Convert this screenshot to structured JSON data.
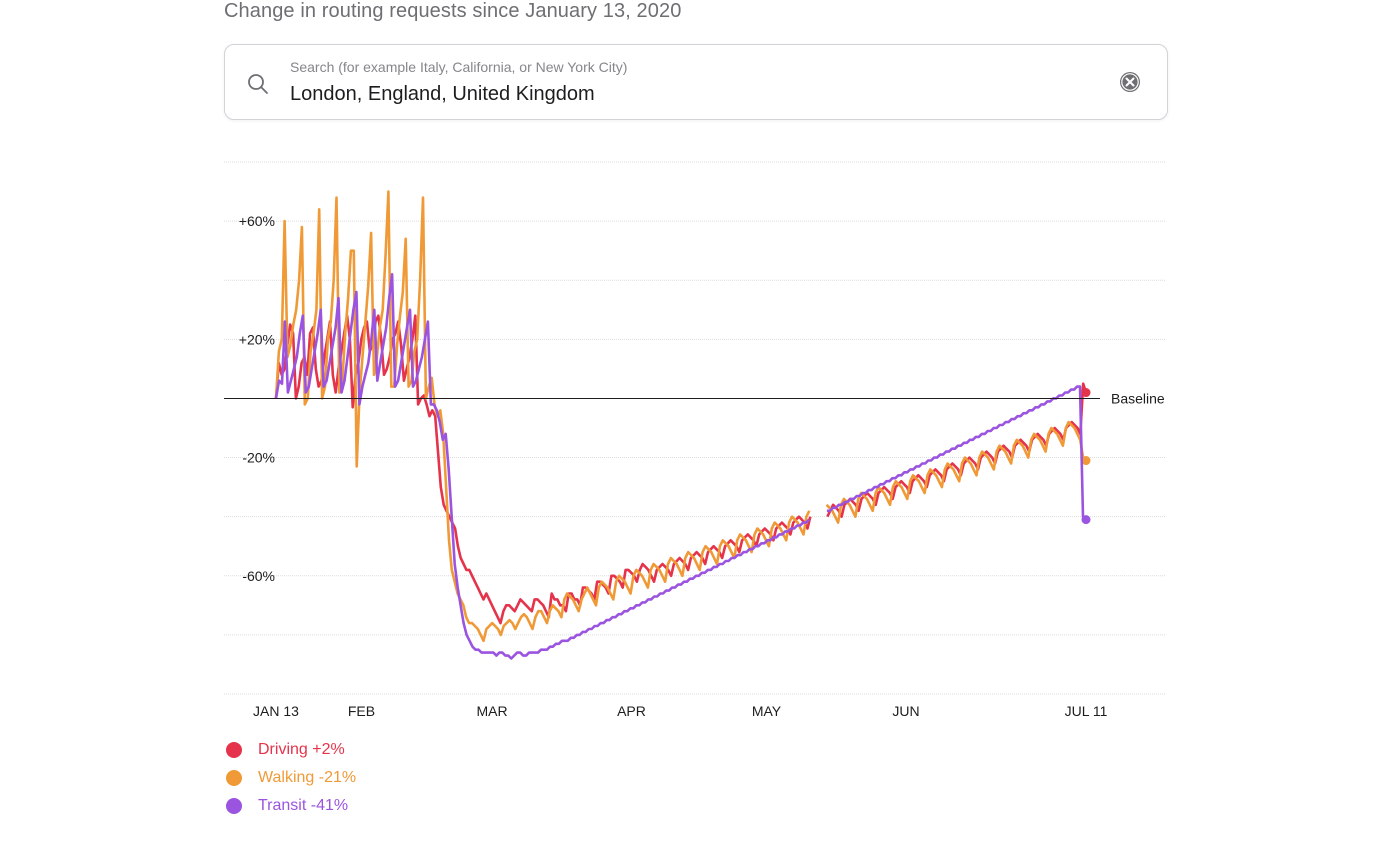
{
  "page": {
    "subtitle": "Change in routing requests since January 13, 2020"
  },
  "search": {
    "placeholder": "Search (for example Italy, California, or New York City)",
    "value": "London, England, United Kingdom",
    "icon": "search-icon",
    "clear_icon": "clear-icon"
  },
  "chart_data": {
    "type": "line",
    "subtitle": "Change in routing requests since January 13, 2020",
    "x_range": [
      "2020-01-13",
      "2020-07-11"
    ],
    "x_ticks": [
      {
        "label": "JAN 13",
        "day": 0
      },
      {
        "label": "FEB",
        "day": 19
      },
      {
        "label": "MAR",
        "day": 48
      },
      {
        "label": "APR",
        "day": 79
      },
      {
        "label": "MAY",
        "day": 109
      },
      {
        "label": "JUN",
        "day": 140
      },
      {
        "label": "JUL 11",
        "day": 180
      }
    ],
    "y_ticks": [
      {
        "label": "+60%",
        "value": 60
      },
      {
        "label": "+20%",
        "value": 20
      },
      {
        "label": "-20%",
        "value": -20
      },
      {
        "label": "-60%",
        "value": -60
      }
    ],
    "y_gridlines": [
      80,
      60,
      40,
      20,
      -20,
      -40,
      -60,
      -80,
      -100
    ],
    "ylim": [
      -100,
      80
    ],
    "baseline_label": "Baseline",
    "gap": [
      119,
      122
    ],
    "series": [
      {
        "name": "Driving",
        "legend": "Driving +2%",
        "color": "#e5334b",
        "values": [
          0,
          12,
          8,
          10,
          18,
          25,
          22,
          0,
          4,
          12,
          14,
          8,
          22,
          24,
          10,
          4,
          6,
          14,
          20,
          26,
          8,
          2,
          10,
          16,
          22,
          28,
          20,
          -3,
          8,
          12,
          20,
          24,
          26,
          16,
          18,
          26,
          28,
          20,
          8,
          10,
          14,
          20,
          22,
          26,
          18,
          6,
          10,
          14,
          20,
          28,
          -2,
          0,
          1,
          -2,
          -6,
          -4,
          -6,
          -18,
          -30,
          -36,
          -38,
          -40,
          -42,
          -44,
          -50,
          -54,
          -56,
          -58,
          -58,
          -60,
          -62,
          -64,
          -66,
          -68,
          -66,
          -68,
          -70,
          -72,
          -74,
          -76,
          -72,
          -70,
          -70,
          -71,
          -72,
          -70,
          -68,
          -69,
          -70,
          -71,
          -72,
          -68,
          -68,
          -69,
          -70,
          -72,
          -74,
          -66,
          -68,
          -68,
          -70,
          -70,
          -72,
          -66,
          -66,
          -68,
          -68,
          -70,
          -64,
          -64,
          -65,
          -66,
          -68,
          -62,
          -62,
          -63,
          -64,
          -66,
          -60,
          -60,
          -61,
          -62,
          -64,
          -58,
          -58,
          -59,
          -60,
          -62,
          -58,
          -56,
          -57,
          -58,
          -60,
          -62,
          -58,
          -57,
          -56,
          -57,
          -58,
          -60,
          -56,
          -55,
          -54,
          -55,
          -56,
          -58,
          -54,
          -53,
          -52,
          -53,
          -54,
          -56,
          -52,
          -51,
          -50,
          -51,
          -52,
          -54,
          -50,
          -49,
          -48,
          -49,
          -50,
          -52,
          -48,
          -47,
          -46,
          -47,
          -48,
          -50,
          -46,
          -45,
          -44,
          -45,
          -46,
          -48,
          -44,
          -43,
          -42,
          -43,
          -44,
          -46,
          -42,
          -41,
          -40,
          -41,
          -42,
          -44,
          -40,
          -39,
          -38,
          -39,
          -40,
          -42,
          -40,
          -38,
          -36,
          -37,
          -38,
          -40,
          -36,
          -35,
          -34,
          -35,
          -36,
          -38,
          -34,
          -33,
          -32,
          -33,
          -34,
          -36,
          -32,
          -31,
          -30,
          -31,
          -32,
          -34,
          -30,
          -29,
          -28,
          -29,
          -30,
          -32,
          -28,
          -27,
          -26,
          -27,
          -28,
          -30,
          -26,
          -25,
          -24,
          -25,
          -26,
          -28,
          -24,
          -23,
          -22,
          -23,
          -24,
          -26,
          -22,
          -21,
          -20,
          -21,
          -22,
          -24,
          -20,
          -19,
          -18,
          -19,
          -20,
          -22,
          -18,
          -17,
          -16,
          -17,
          -18,
          -20,
          -16,
          -15,
          -14,
          -15,
          -16,
          -18,
          -14,
          -13,
          -12,
          -13,
          -14,
          -16,
          -12,
          -11,
          -10,
          -11,
          -12,
          -14,
          -10,
          -9,
          -8,
          -9,
          -10,
          -12,
          5,
          2
        ]
      },
      {
        "name": "Walking",
        "legend": "Walking -21%",
        "color": "#f09a37",
        "values": [
          0,
          16,
          20,
          60,
          14,
          18,
          25,
          30,
          40,
          58,
          -2,
          0,
          16,
          22,
          30,
          64,
          0,
          4,
          20,
          26,
          40,
          68,
          2,
          6,
          22,
          34,
          50,
          50,
          -23,
          2,
          14,
          26,
          38,
          56,
          8,
          14,
          24,
          30,
          48,
          70,
          4,
          4,
          18,
          28,
          36,
          54,
          4,
          6,
          16,
          20,
          40,
          68,
          0,
          4,
          7,
          -2,
          -6,
          -4,
          -12,
          -30,
          -48,
          -58,
          -62,
          -66,
          -68,
          -70,
          -74,
          -76,
          -76,
          -77,
          -78,
          -80,
          -82,
          -78,
          -77,
          -76,
          -77,
          -78,
          -80,
          -77,
          -76,
          -75,
          -76,
          -78,
          -76,
          -74,
          -73,
          -74,
          -76,
          -78,
          -74,
          -72,
          -72,
          -74,
          -76,
          -72,
          -70,
          -71,
          -72,
          -74,
          -68,
          -66,
          -67,
          -68,
          -70,
          -72,
          -68,
          -66,
          -64,
          -66,
          -68,
          -70,
          -64,
          -62,
          -63,
          -64,
          -66,
          -68,
          -62,
          -60,
          -61,
          -62,
          -64,
          -66,
          -60,
          -58,
          -59,
          -60,
          -62,
          -64,
          -58,
          -56,
          -57,
          -58,
          -60,
          -62,
          -56,
          -54,
          -55,
          -56,
          -58,
          -60,
          -54,
          -52,
          -53,
          -54,
          -56,
          -58,
          -52,
          -50,
          -51,
          -52,
          -54,
          -56,
          -50,
          -48,
          -49,
          -50,
          -52,
          -54,
          -48,
          -46,
          -47,
          -48,
          -50,
          -52,
          -46,
          -44,
          -45,
          -46,
          -48,
          -50,
          -44,
          -42,
          -43,
          -44,
          -46,
          -48,
          -42,
          -40,
          -41,
          -42,
          -44,
          -46,
          -40,
          -38,
          -39,
          -40,
          -42,
          -44,
          -38,
          -36,
          -37,
          -38,
          -40,
          -42,
          -36,
          -34,
          -35,
          -36,
          -38,
          -40,
          -34,
          -32,
          -33,
          -34,
          -36,
          -38,
          -32,
          -30,
          -31,
          -32,
          -34,
          -36,
          -30,
          -28,
          -29,
          -30,
          -32,
          -34,
          -28,
          -26,
          -27,
          -28,
          -30,
          -32,
          -26,
          -24,
          -25,
          -26,
          -28,
          -30,
          -24,
          -22,
          -23,
          -24,
          -26,
          -28,
          -22,
          -20,
          -21,
          -22,
          -24,
          -26,
          -20,
          -18,
          -19,
          -20,
          -22,
          -24,
          -18,
          -16,
          -17,
          -18,
          -20,
          -22,
          -16,
          -14,
          -15,
          -16,
          -18,
          -20,
          -14,
          -12,
          -13,
          -14,
          -16,
          -18,
          -12,
          -10,
          -11,
          -12,
          -14,
          -16,
          -10,
          -8,
          -9,
          -10,
          -12,
          -14,
          -20,
          -21
        ]
      },
      {
        "name": "Transit",
        "legend": "Transit -41%",
        "color": "#9b54e0",
        "values": [
          0,
          6,
          5,
          26,
          2,
          6,
          10,
          14,
          22,
          28,
          2,
          4,
          10,
          16,
          22,
          30,
          4,
          6,
          12,
          18,
          24,
          34,
          2,
          6,
          14,
          22,
          30,
          36,
          -2,
          4,
          8,
          12,
          20,
          30,
          6,
          12,
          18,
          24,
          34,
          42,
          4,
          6,
          12,
          18,
          24,
          30,
          4,
          6,
          10,
          14,
          20,
          26,
          -2,
          -2,
          -4,
          -8,
          -14,
          -12,
          -24,
          -40,
          -56,
          -64,
          -70,
          -76,
          -80,
          -82,
          -84,
          -85,
          -85,
          -86,
          -86,
          -86,
          -86,
          -86,
          -87,
          -86,
          -86,
          -87,
          -87,
          -88,
          -87,
          -86,
          -86,
          -87,
          -87,
          -86,
          -86,
          -86,
          -86,
          -85,
          -85,
          -85,
          -84,
          -84,
          -83,
          -83,
          -82,
          -82,
          -82,
          -81,
          -81,
          -80,
          -80,
          -79,
          -79,
          -78,
          -78,
          -77,
          -77,
          -76,
          -76,
          -75,
          -75,
          -74,
          -74,
          -73,
          -73,
          -72,
          -72,
          -71,
          -71,
          -70,
          -70,
          -69,
          -69,
          -68,
          -68,
          -67,
          -67,
          -66,
          -66,
          -65,
          -65,
          -64,
          -64,
          -63,
          -63,
          -62,
          -62,
          -61,
          -61,
          -60,
          -60,
          -59,
          -59,
          -58,
          -58,
          -57,
          -57,
          -56,
          -56,
          -55,
          -55,
          -54,
          -54,
          -53,
          -53,
          -52,
          -52,
          -51,
          -51,
          -50,
          -50,
          -49,
          -49,
          -48,
          -48,
          -47,
          -47,
          -46,
          -46,
          -45,
          -45,
          -44,
          -44,
          -43,
          -43,
          -42,
          -42,
          -41,
          -41,
          -40,
          -40,
          -39,
          -39,
          -38,
          -38,
          -37,
          -37,
          -36,
          -36,
          -35,
          -35,
          -34,
          -34,
          -33,
          -33,
          -32,
          -32,
          -31,
          -31,
          -30,
          -30,
          -29,
          -29,
          -28,
          -28,
          -27,
          -27,
          -26,
          -26,
          -25,
          -25,
          -24,
          -24,
          -23,
          -23,
          -22,
          -22,
          -21,
          -21,
          -20,
          -20,
          -19,
          -19,
          -18,
          -18,
          -17,
          -17,
          -16,
          -16,
          -15,
          -15,
          -14,
          -14,
          -13,
          -13,
          -12,
          -12,
          -11,
          -11,
          -10,
          -10,
          -9,
          -9,
          -8,
          -8,
          -7,
          -7,
          -6,
          -6,
          -5,
          -5,
          -4,
          -4,
          -3,
          -3,
          -2,
          -2,
          -1,
          -1,
          0,
          0,
          1,
          1,
          2,
          2,
          3,
          3,
          4,
          4,
          -40,
          -41
        ]
      }
    ]
  }
}
